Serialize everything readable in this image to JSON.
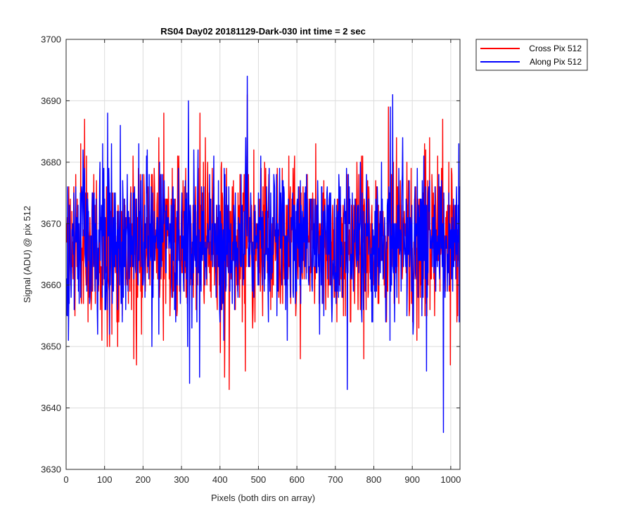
{
  "chart_data": {
    "type": "line",
    "title": "RS04 Day02 20181129-Dark-030 int time = 2 sec",
    "xlabel": "Pixels (both dirs on array)",
    "ylabel": "Signal (ADU) @ pix 512",
    "xlim": [
      0,
      1024
    ],
    "ylim": [
      3630,
      3700
    ],
    "xticks": [
      0,
      100,
      200,
      300,
      400,
      500,
      600,
      700,
      800,
      900,
      1000
    ],
    "yticks": [
      3630,
      3640,
      3650,
      3660,
      3670,
      3680,
      3690,
      3700
    ],
    "grid": true,
    "legend_position": "top-right-outside",
    "colors": {
      "cross": "#ff0000",
      "along": "#0000ff"
    },
    "series": [
      {
        "name": "Cross Pix 512",
        "color": "#ff0000",
        "noise_model": {
          "n_points": 1024,
          "mean": 3667,
          "std": 6.5,
          "seed": 11
        },
        "spikes": [
          {
            "x": 47,
            "y": 3687
          },
          {
            "x": 175,
            "y": 3648
          },
          {
            "x": 182,
            "y": 3647
          },
          {
            "x": 240,
            "y": 3684
          },
          {
            "x": 253,
            "y": 3688
          },
          {
            "x": 347,
            "y": 3688
          },
          {
            "x": 400,
            "y": 3649
          },
          {
            "x": 411,
            "y": 3645
          },
          {
            "x": 423,
            "y": 3643
          },
          {
            "x": 465,
            "y": 3646
          },
          {
            "x": 470,
            "y": 3691
          },
          {
            "x": 608,
            "y": 3648
          },
          {
            "x": 773,
            "y": 3648
          },
          {
            "x": 837,
            "y": 3689
          },
          {
            "x": 978,
            "y": 3687
          },
          {
            "x": 998,
            "y": 3647
          }
        ]
      },
      {
        "name": "Along Pix 512",
        "color": "#0000ff",
        "noise_model": {
          "n_points": 1024,
          "mean": 3667,
          "std": 6.5,
          "seed": 29
        },
        "spikes": [
          {
            "x": 5,
            "y": 3651
          },
          {
            "x": 43,
            "y": 3682
          },
          {
            "x": 107,
            "y": 3688
          },
          {
            "x": 140,
            "y": 3686
          },
          {
            "x": 317,
            "y": 3690
          },
          {
            "x": 320,
            "y": 3644
          },
          {
            "x": 346,
            "y": 3645
          },
          {
            "x": 470,
            "y": 3694
          },
          {
            "x": 730,
            "y": 3643
          },
          {
            "x": 842,
            "y": 3689
          },
          {
            "x": 848,
            "y": 3691
          },
          {
            "x": 936,
            "y": 3646
          },
          {
            "x": 980,
            "y": 3636
          },
          {
            "x": 1020,
            "y": 3683
          }
        ]
      }
    ]
  }
}
